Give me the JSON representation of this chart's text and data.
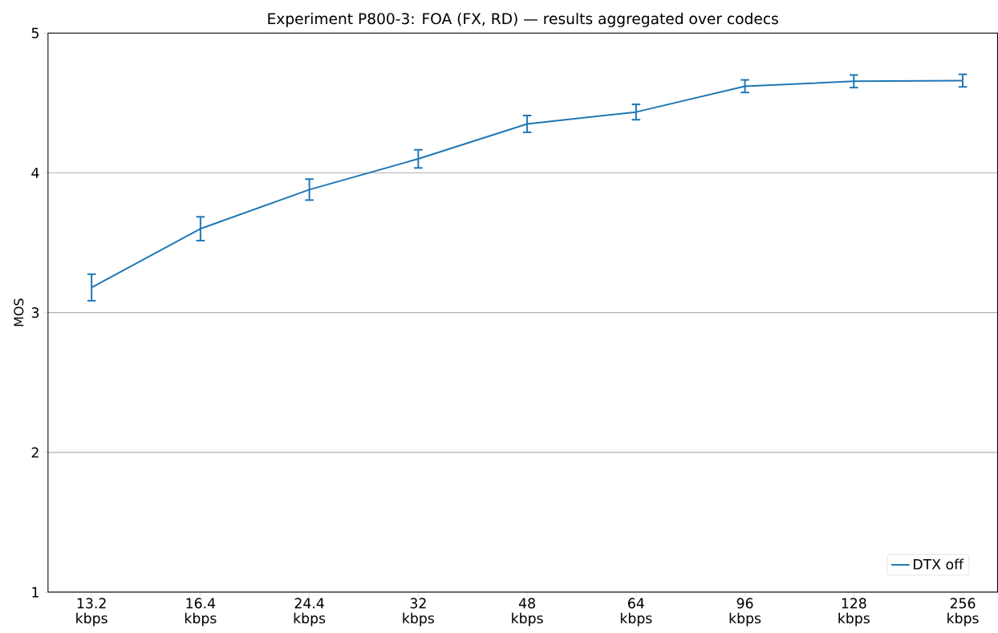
{
  "chart_data": {
    "type": "line",
    "title": "Experiment P800-3: FOA (FX, RD) — results aggregated over codecs",
    "ylabel": "MOS",
    "categories": [
      "13.2 kbps",
      "16.4 kbps",
      "24.4 kbps",
      "32 kbps",
      "48 kbps",
      "64 kbps",
      "96 kbps",
      "128 kbps",
      "256 kbps"
    ],
    "series": [
      {
        "name": "DTX off",
        "color": "#1f77b4",
        "values": [
          3.18,
          3.6,
          3.88,
          4.1,
          4.35,
          4.435,
          4.62,
          4.655,
          4.66
        ],
        "errors": [
          0.095,
          0.085,
          0.075,
          0.065,
          0.06,
          0.055,
          0.045,
          0.045,
          0.045
        ]
      }
    ],
    "ylim": [
      1,
      5
    ],
    "yticks": [
      1,
      2,
      3,
      4,
      5
    ],
    "grid": "y",
    "legend": "bottom right",
    "marker": "none",
    "line_style": "solid"
  }
}
